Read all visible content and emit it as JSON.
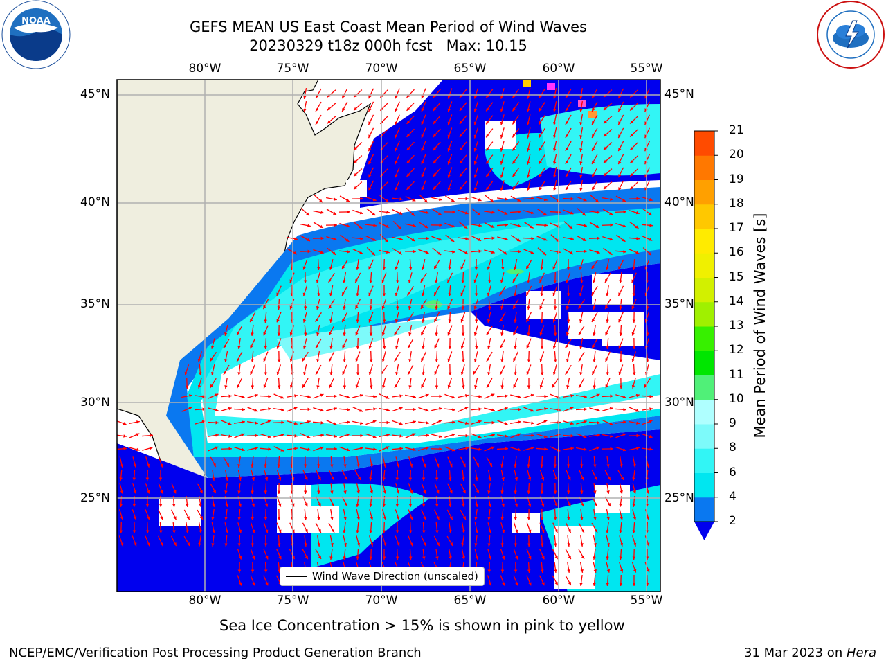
{
  "title": {
    "line1": "GEFS MEAN US East Coast Mean Period of Wind Waves",
    "line2": "20230329 t18z 000h fcst   Max: 10.15"
  },
  "logos": {
    "left": {
      "text": "NOAA",
      "icon": "noaa-logo"
    },
    "right": {
      "icon": "nws-logo"
    }
  },
  "map": {
    "lon_labels": [
      "80°W",
      "75°W",
      "70°W",
      "65°W",
      "60°W",
      "55°W"
    ],
    "lat_labels": [
      "45°N",
      "40°N",
      "35°N",
      "30°N",
      "25°N"
    ],
    "lon_range": [
      -85,
      -54.5
    ],
    "lat_range": [
      20.5,
      46
    ],
    "legend": "Wind Wave Direction (unscaled)",
    "colors": {
      "land": "#efeedf",
      "gridline": "#b0b0b0",
      "arrow": "#ff0000",
      "no_data": "#ffffff"
    }
  },
  "colorbar": {
    "label": "Mean Period of Wind Waves [s]",
    "ticks": [
      "2",
      "4",
      "6",
      "8",
      "9",
      "10",
      "11",
      "12",
      "13",
      "14",
      "15",
      "16",
      "17",
      "18",
      "19",
      "20",
      "21"
    ],
    "colors": [
      "#0a78f0",
      "#00e6f0",
      "#32f5f5",
      "#7dfafa",
      "#afffff",
      "#50f078",
      "#00e600",
      "#37f000",
      "#a0f000",
      "#d2f000",
      "#f0f000",
      "#ffeb00",
      "#ffc800",
      "#ffa000",
      "#ff7800",
      "#ff4b00",
      "#ff1e00"
    ],
    "extend_color": "#0000ee"
  },
  "footer": {
    "sea_ice_note": "Sea Ice Concentration > 15% is shown in pink to yellow",
    "left": "NCEP/EMC/Verification Post Processing Product Generation Branch",
    "right_date": "31 Mar 2023 on ",
    "right_machine": "Hera"
  }
}
